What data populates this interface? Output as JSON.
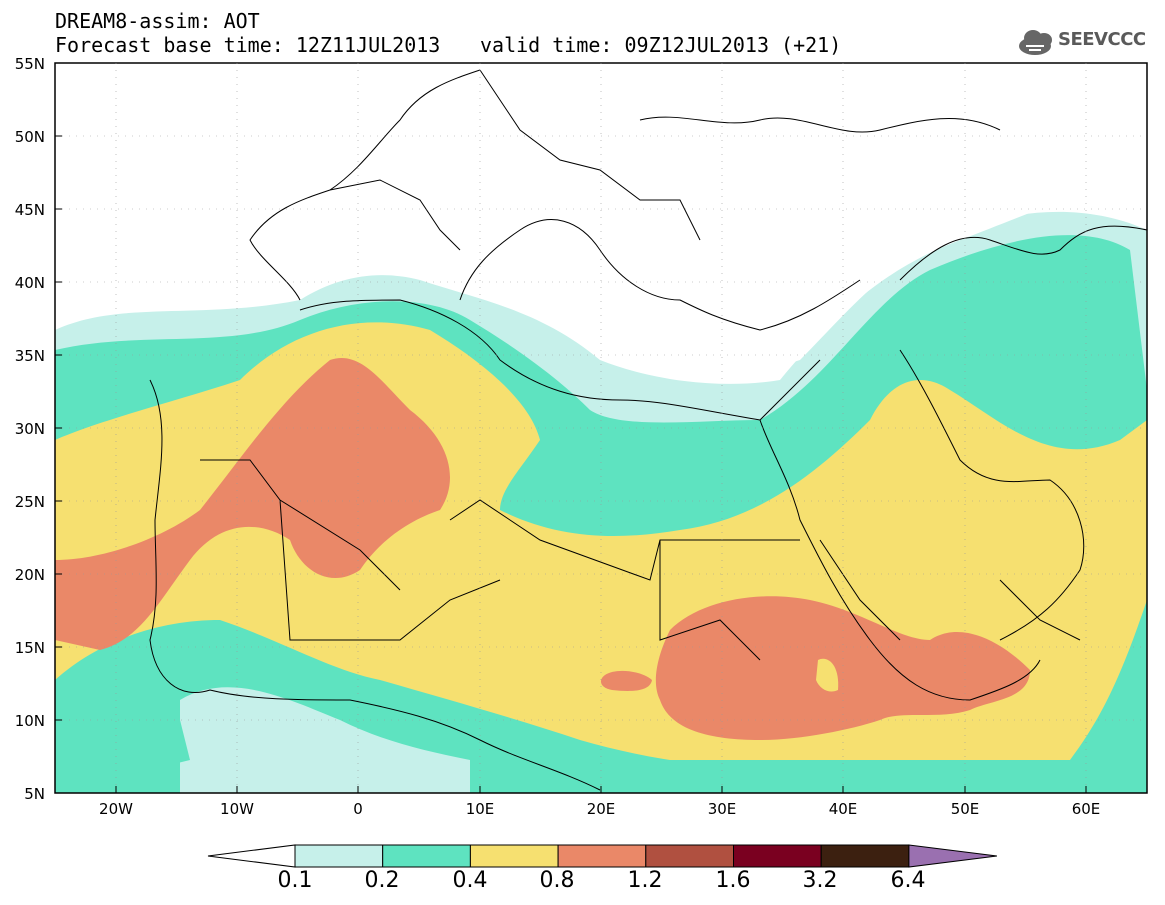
{
  "header": {
    "line1": "DREAM8-assim: AOT",
    "line2": "Forecast base time: 12Z11JUL2013",
    "valid": "valid time: 09Z12JUL2013 (+21)",
    "logo_text": "SEEVCCC"
  },
  "axes": {
    "lat_labels": [
      "55N",
      "50N",
      "45N",
      "40N",
      "35N",
      "30N",
      "25N",
      "20N",
      "15N",
      "10N",
      "5N"
    ],
    "lon_labels": [
      "20W",
      "10W",
      "0",
      "10E",
      "20E",
      "30E",
      "40E",
      "50E",
      "60E"
    ]
  },
  "colorbar": {
    "labels": [
      "0.1",
      "0.2",
      "0.4",
      "0.8",
      "1.2",
      "1.6",
      "3.2",
      "6.4"
    ],
    "colors": [
      "#ffffff",
      "#c6f0ea",
      "#5ee3c0",
      "#f6e070",
      "#ea8868",
      "#b05040",
      "#7a0020",
      "#3c2010",
      "#9a70b0"
    ]
  },
  "colors": {
    "aot_0_1_0_2": "#c6f0ea",
    "aot_0_2_0_4": "#5ee3c0",
    "aot_0_4_0_8": "#f6e070",
    "aot_0_8_1_2": "#ea8868"
  }
}
